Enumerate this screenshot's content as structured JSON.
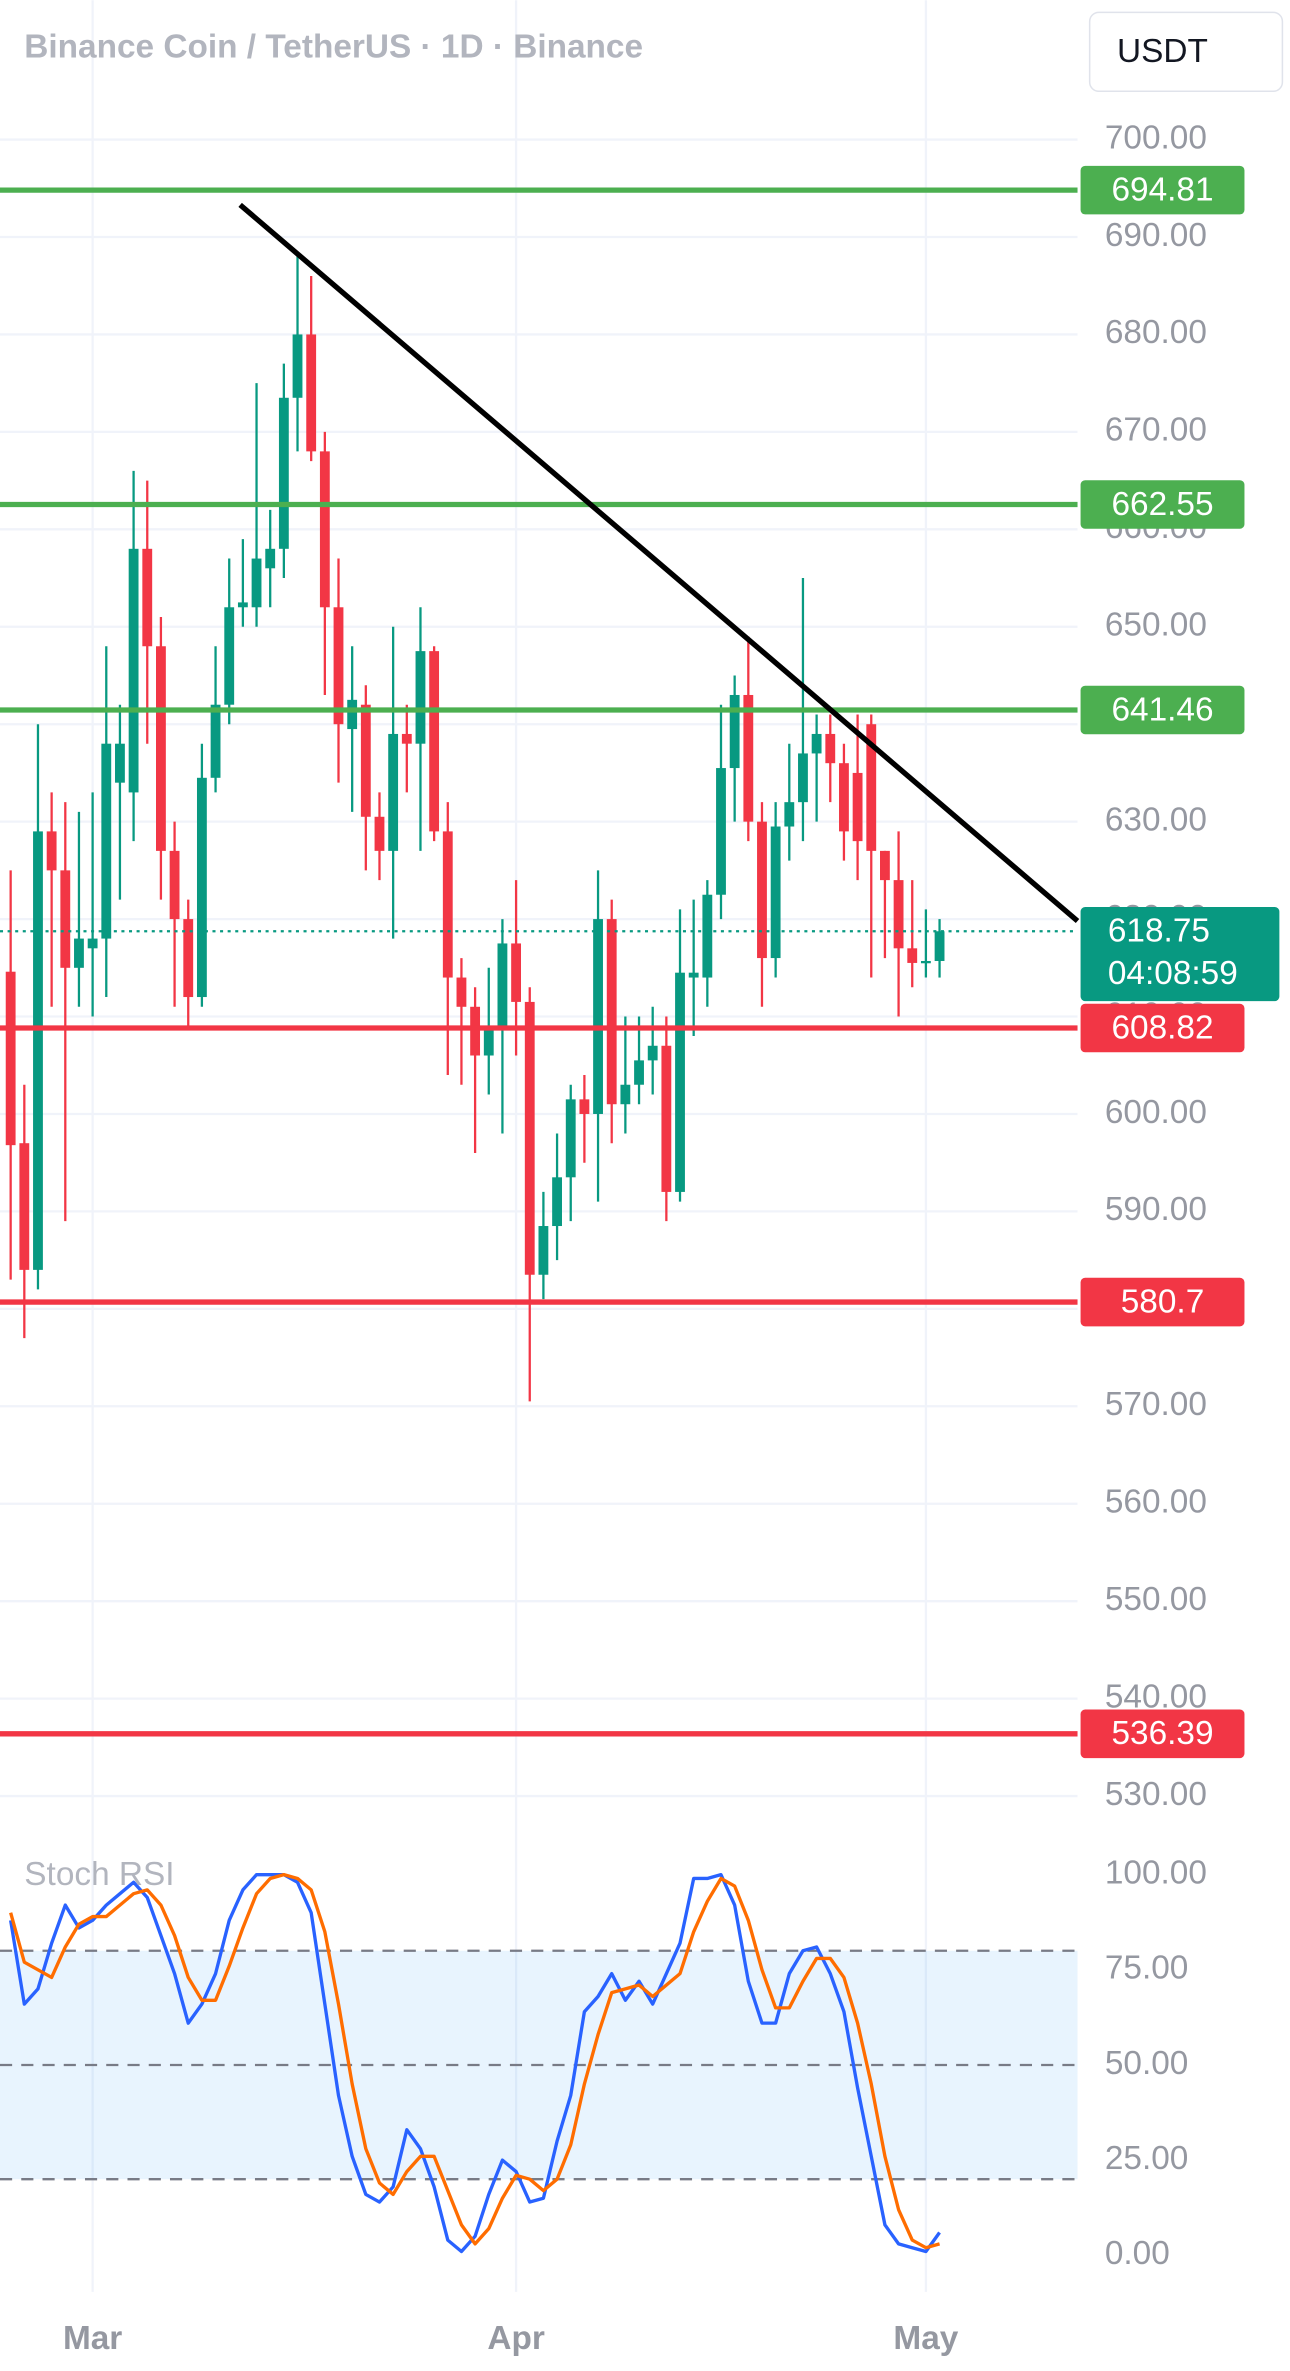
{
  "chart_data": [
    {
      "type": "candlestick",
      "title": "Binance Coin / TetherUS · 1D · Binance",
      "currency": "USDT",
      "countdown": "04:08:59",
      "last_price": 618.75,
      "last_price_color": "#089981",
      "up_color": "#089981",
      "down_color": "#f23645",
      "categories": [
        null,
        null,
        null,
        null,
        null,
        null,
        "Mar",
        null,
        null,
        null,
        null,
        null,
        null,
        null,
        null,
        null,
        null,
        null,
        null,
        null,
        null,
        null,
        null,
        null,
        null,
        null,
        null,
        null,
        null,
        null,
        null,
        null,
        null,
        null,
        null,
        null,
        null,
        "Apr",
        null,
        null,
        null,
        null,
        null,
        null,
        null,
        null,
        null,
        null,
        null,
        null,
        null,
        null,
        null,
        null,
        null,
        null,
        null,
        null,
        null,
        null,
        null,
        null,
        null,
        null,
        null,
        null,
        null,
        "May",
        null
      ],
      "open": [
        614.6,
        597,
        584,
        629,
        625,
        615,
        617,
        618,
        634,
        633,
        658,
        648,
        627,
        620,
        612,
        634.5,
        642,
        652,
        652,
        656,
        658,
        673.5,
        680,
        668,
        652,
        639.5,
        642,
        630.5,
        627,
        639,
        638,
        647.5,
        629,
        614,
        611,
        606,
        609,
        617.5,
        611.5,
        583.5,
        588.5,
        593.5,
        601.5,
        600,
        620,
        601,
        603,
        605.5,
        607,
        592,
        614,
        614,
        622.5,
        635.5,
        643,
        630,
        616,
        629.5,
        632,
        637,
        639,
        636,
        635,
        640,
        627,
        624,
        617,
        615.5,
        615.7
      ],
      "high": [
        625,
        603,
        640,
        633,
        632,
        631,
        633,
        648,
        642,
        666,
        665,
        651,
        630,
        622,
        638,
        648,
        657,
        659,
        675,
        662,
        677,
        688,
        686,
        670,
        657,
        648,
        644,
        633,
        650,
        642,
        652,
        648,
        632,
        616,
        613,
        615,
        620,
        624,
        613,
        592,
        598,
        603,
        604,
        625,
        622,
        610,
        610,
        611,
        610,
        621,
        622,
        624,
        642,
        645,
        649,
        632,
        632,
        638,
        655,
        641,
        641,
        638,
        641,
        641,
        627,
        629,
        624,
        621,
        620
      ],
      "low": [
        583,
        577,
        582,
        611,
        589,
        611,
        610,
        612,
        622,
        628,
        638,
        622,
        611,
        609,
        611,
        633,
        640,
        650,
        650,
        652,
        655,
        668,
        667,
        643,
        634,
        631,
        625,
        624,
        618,
        633,
        627,
        628,
        604,
        603,
        596,
        602,
        598,
        606,
        570.5,
        581,
        585,
        589,
        595,
        591,
        597,
        598,
        601,
        602,
        589,
        591,
        608,
        611,
        620,
        630,
        628,
        611,
        614,
        626,
        628,
        630,
        632,
        626,
        624,
        614,
        616,
        610,
        613,
        614,
        614
      ],
      "close": [
        596.8,
        584,
        629,
        625,
        615,
        618,
        618,
        638,
        638,
        658,
        648,
        627,
        620,
        612,
        634.5,
        642,
        652,
        652.5,
        657,
        658,
        673.5,
        680,
        668,
        652,
        640,
        642.5,
        630.5,
        627,
        639,
        638,
        647.5,
        629,
        614,
        611,
        606,
        609,
        617.5,
        611.5,
        583.5,
        588.5,
        593.5,
        601.5,
        600,
        620,
        601,
        603,
        605.5,
        607,
        592,
        614.5,
        614.5,
        622.5,
        635.5,
        643,
        630,
        616,
        629.5,
        632,
        637,
        639,
        636,
        629,
        628,
        627,
        624,
        617,
        615.5,
        615.7,
        618.75
      ],
      "levels": [
        {
          "value": 694.81,
          "color": "#4caf50"
        },
        {
          "value": 662.55,
          "color": "#4caf50"
        },
        {
          "value": 641.46,
          "color": "#4caf50"
        },
        {
          "value": 608.82,
          "color": "#f23645"
        },
        {
          "value": 580.7,
          "color": "#f23645"
        },
        {
          "value": 536.39,
          "color": "#f23645"
        }
      ],
      "trendline": {
        "x": [
          16.8,
          78.1
        ],
        "y": [
          693.3,
          619.8
        ],
        "color": "#000000"
      },
      "xlim": [
        -0.78,
        78.1
      ],
      "ylim": [
        527.4,
        714.3
      ],
      "yticks": [
        {
          "value": 530,
          "label": "530.00"
        },
        {
          "value": 540,
          "label": "540.00"
        },
        {
          "value": 550,
          "label": "550.00"
        },
        {
          "value": 560,
          "label": "560.00"
        },
        {
          "value": 570,
          "label": "570.00"
        },
        {
          "value": 580,
          "label": "580.00"
        },
        {
          "value": 590,
          "label": "590.00"
        },
        {
          "value": 600,
          "label": "600.00"
        },
        {
          "value": 610,
          "label": "610.00"
        },
        {
          "value": 620,
          "label": "620.00"
        },
        {
          "value": 630,
          "label": "630.00"
        },
        {
          "value": 640,
          "label": "640.00"
        },
        {
          "value": 650,
          "label": "650.00"
        },
        {
          "value": 660,
          "label": "660.00"
        },
        {
          "value": 670,
          "label": "670.00"
        },
        {
          "value": 680,
          "label": "680.00"
        },
        {
          "value": 690,
          "label": "690.00"
        },
        {
          "value": 700,
          "label": "700.00"
        }
      ],
      "grid": true
    },
    {
      "type": "line",
      "title": "Stoch RSI",
      "series": [
        {
          "color": "#2962ff",
          "values": [
            88,
            66,
            70,
            82,
            92,
            86,
            88,
            92,
            95,
            98,
            94,
            84,
            74,
            61,
            66,
            74,
            88,
            96,
            100,
            100,
            100,
            98,
            90,
            66,
            42,
            26,
            16,
            14,
            18,
            33,
            28,
            18,
            4,
            1,
            5,
            16,
            25,
            22,
            14,
            15,
            30,
            42,
            64,
            68,
            74,
            67,
            72,
            66,
            74,
            82,
            99,
            99,
            100,
            92,
            72,
            61,
            61,
            74,
            80,
            81,
            74,
            64,
            44,
            26,
            8,
            3,
            2,
            1,
            6
          ]
        },
        {
          "color": "#ff6d00",
          "values": [
            90,
            77,
            75,
            73,
            81,
            87,
            89,
            89,
            92,
            95,
            96,
            92,
            84,
            73,
            67,
            67,
            76,
            86,
            95,
            99,
            100,
            99,
            96,
            85,
            66,
            45,
            28,
            19,
            16,
            22,
            26,
            26,
            17,
            8,
            3,
            7,
            15,
            21,
            20,
            17,
            20,
            29,
            45,
            58,
            69,
            70,
            71,
            68,
            71,
            74,
            85,
            93,
            99,
            97,
            88,
            75,
            65,
            65,
            72,
            78,
            78,
            73,
            61,
            45,
            26,
            12,
            4,
            2,
            3
          ]
        }
      ],
      "levels": [
        80,
        50,
        20
      ],
      "band_color": "#2196f3",
      "ylim": [
        -9.6,
        112
      ],
      "yticks": [
        {
          "value": 0,
          "label": "0.00"
        },
        {
          "value": 25,
          "label": "25.00"
        },
        {
          "value": 50,
          "label": "50.00"
        },
        {
          "value": 75,
          "label": "75.00"
        },
        {
          "value": 100,
          "label": "100.00"
        }
      ]
    }
  ]
}
